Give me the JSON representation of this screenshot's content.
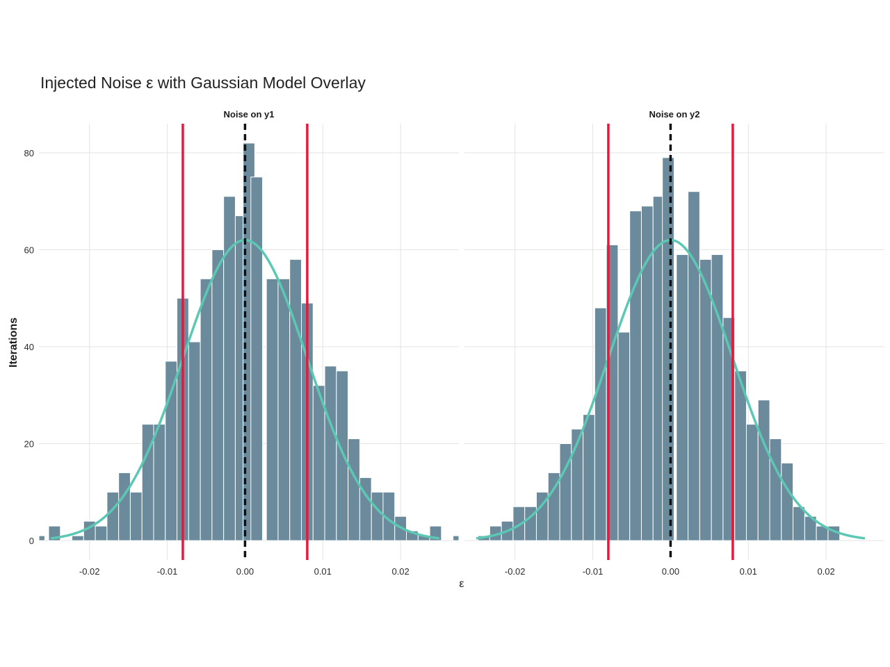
{
  "chart_data": {
    "type": "bar",
    "title": "Injected Noise ε with Gaussian Model Overlay",
    "xlabel": "ε",
    "ylabel": "Iterations",
    "xlim": [
      -0.0265,
      0.0275
    ],
    "ylim": [
      -4,
      86
    ],
    "xticks": [
      -0.02,
      -0.01,
      0.0,
      0.01,
      0.02
    ],
    "xtick_labels": [
      "-0.02",
      "-0.01",
      "0.00",
      "0.01",
      "0.02"
    ],
    "yticks": [
      0,
      20,
      40,
      60,
      80
    ],
    "ytick_labels": [
      "0",
      "20",
      "40",
      "60",
      "80"
    ],
    "bin_width": 0.0015,
    "grid": true,
    "colors": {
      "bars": "#6b8a9c",
      "gaussian": "#5cc8b4",
      "bounds": "#e8173c",
      "mean_line": "#111111"
    },
    "panels": [
      {
        "strip_label": "Noise on y1",
        "bin_centers": [
          -0.0265,
          -0.0245,
          -0.023,
          -0.0215,
          -0.02,
          -0.0185,
          -0.017,
          -0.0155,
          -0.014,
          -0.0125,
          -0.011,
          -0.0095,
          -0.008,
          -0.0065,
          -0.005,
          -0.0035,
          -0.002,
          -0.0005,
          0.0005,
          0.0015,
          0.0035,
          0.005,
          0.0065,
          0.008,
          0.0095,
          0.011,
          0.0125,
          0.014,
          0.0155,
          0.017,
          0.0185,
          0.02,
          0.0215,
          0.023,
          0.0245,
          0.026,
          0.0275
        ],
        "counts": [
          1,
          3,
          0,
          1,
          4,
          3,
          10,
          14,
          10,
          24,
          24,
          37,
          50,
          41,
          54,
          60,
          71,
          67,
          82,
          75,
          54,
          54,
          58,
          49,
          32,
          36,
          35,
          21,
          13,
          10,
          10,
          5,
          2,
          1,
          3,
          0,
          1
        ],
        "gaussian": {
          "mean": 0.0,
          "sd": 0.008,
          "peak": 62
        },
        "bounds": [
          -0.008,
          0.008
        ],
        "mean_line": 0.0
      },
      {
        "strip_label": "Noise on y2",
        "bin_centers": [
          -0.024,
          -0.0225,
          -0.021,
          -0.0195,
          -0.018,
          -0.0165,
          -0.015,
          -0.0135,
          -0.012,
          -0.0105,
          -0.009,
          -0.0075,
          -0.006,
          -0.0045,
          -0.003,
          -0.0015,
          -0.0003,
          0.0015,
          0.003,
          0.0045,
          0.006,
          0.0075,
          0.009,
          0.0105,
          0.012,
          0.0135,
          0.015,
          0.0165,
          0.018,
          0.0195,
          0.021
        ],
        "counts": [
          1,
          3,
          4,
          7,
          7,
          10,
          14,
          20,
          23,
          26,
          48,
          61,
          43,
          68,
          69,
          71,
          79,
          59,
          72,
          58,
          59,
          46,
          35,
          24,
          29,
          21,
          16,
          7,
          5,
          3,
          3
        ],
        "gaussian": {
          "mean": 0.0,
          "sd": 0.008,
          "peak": 62
        },
        "bounds": [
          -0.008,
          0.008
        ],
        "mean_line": 0.0
      }
    ]
  }
}
